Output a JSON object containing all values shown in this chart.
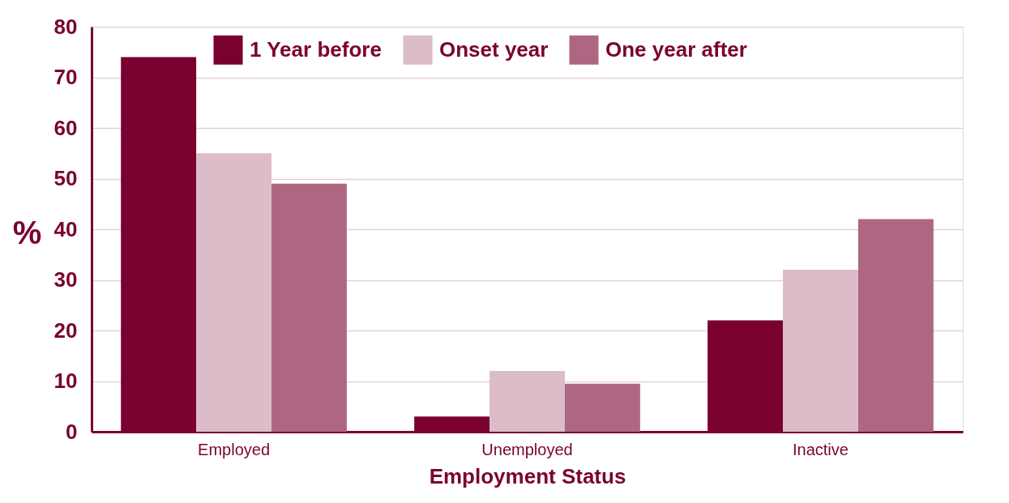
{
  "chart_data": {
    "type": "bar",
    "xlabel": "Employment Status",
    "ylabel": "%",
    "categories": [
      "Employed",
      "Unemployed",
      "Inactive"
    ],
    "series": [
      {
        "name": "1 Year before",
        "color": "#7a0030",
        "values": [
          74,
          3,
          22
        ]
      },
      {
        "name": "Onset year",
        "color": "#dcbcc9",
        "values": [
          55,
          12,
          32
        ]
      },
      {
        "name": "One year after",
        "color": "#ae6782",
        "values": [
          49,
          9.5,
          42
        ]
      }
    ],
    "ylim": [
      0,
      80
    ],
    "yticks": [
      0,
      10,
      20,
      30,
      40,
      50,
      60,
      70,
      80
    ],
    "grid": "y",
    "legend": "top"
  }
}
